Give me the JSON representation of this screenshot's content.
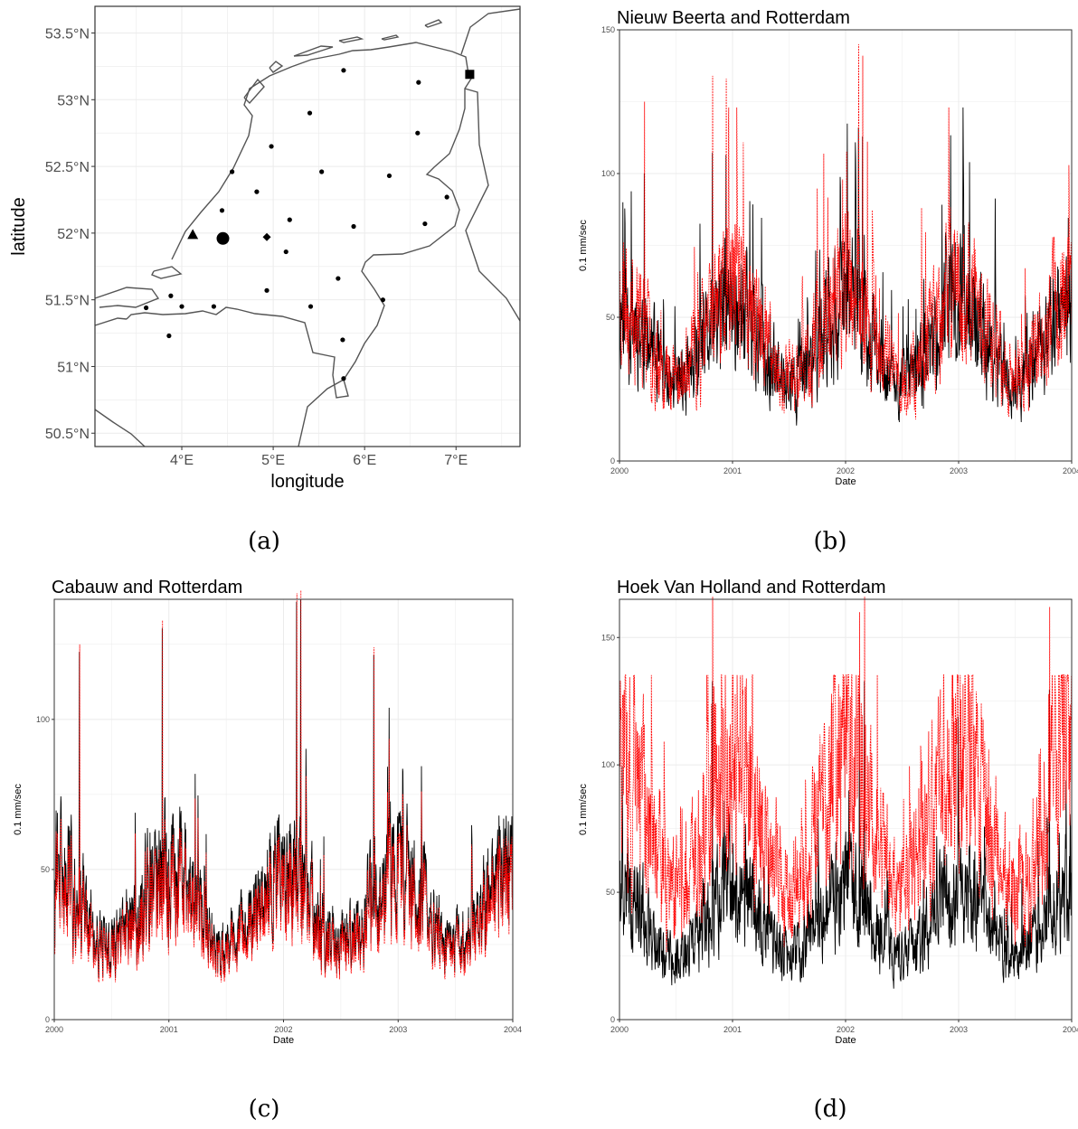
{
  "chart_data": [
    {
      "panel": "(a)",
      "type": "scatter",
      "title": "",
      "xlabel": "longitude",
      "ylabel": "latitude",
      "xlim": [
        3.05,
        7.7
      ],
      "ylim": [
        50.4,
        53.7
      ],
      "x_ticks": [
        4,
        5,
        6,
        7
      ],
      "x_tick_labels": [
        "4°E",
        "5°E",
        "6°E",
        "7°E"
      ],
      "y_ticks": [
        50.5,
        51,
        51.5,
        52,
        52.5,
        53,
        53.5
      ],
      "y_tick_labels": [
        "50.5°N",
        "51°N",
        "51.5°N",
        "52°N",
        "52.5°N",
        "53°N",
        "53.5°N"
      ],
      "grid": true,
      "special_markers": [
        {
          "shape": "triangle",
          "lon": 4.12,
          "lat": 51.99
        },
        {
          "shape": "big-circle",
          "lon": 4.45,
          "lat": 51.96
        },
        {
          "shape": "diamond",
          "lon": 4.93,
          "lat": 51.97
        },
        {
          "shape": "square",
          "lon": 7.15,
          "lat": 53.19
        }
      ],
      "stations": [
        [
          5.77,
          53.22
        ],
        [
          6.59,
          53.13
        ],
        [
          5.4,
          52.9
        ],
        [
          6.58,
          52.75
        ],
        [
          4.98,
          52.65
        ],
        [
          4.55,
          52.46
        ],
        [
          5.53,
          52.46
        ],
        [
          6.27,
          52.43
        ],
        [
          4.82,
          52.31
        ],
        [
          6.9,
          52.27
        ],
        [
          4.44,
          52.17
        ],
        [
          5.18,
          52.1
        ],
        [
          5.88,
          52.05
        ],
        [
          6.66,
          52.07
        ],
        [
          5.14,
          51.86
        ],
        [
          5.71,
          51.66
        ],
        [
          4.93,
          51.57
        ],
        [
          3.88,
          51.53
        ],
        [
          6.2,
          51.5
        ],
        [
          3.61,
          51.44
        ],
        [
          4.0,
          51.45
        ],
        [
          4.35,
          51.45
        ],
        [
          5.41,
          51.45
        ],
        [
          5.76,
          51.2
        ],
        [
          3.86,
          51.23
        ],
        [
          5.77,
          50.91
        ]
      ]
    },
    {
      "panel": "(b)",
      "type": "line",
      "title": "Nieuw Beerta and Rotterdam",
      "xlabel": "Date",
      "ylabel": "0.1 mm/sec",
      "xlim": [
        "2000-01-01",
        "2004-01-01"
      ],
      "ylim": [
        0,
        150
      ],
      "x_ticks": [
        "2000",
        "2001",
        "2002",
        "2003",
        "2004"
      ],
      "y_ticks": [
        0,
        50,
        100,
        150
      ],
      "grid": true,
      "series": [
        {
          "color": "#000000",
          "dash": "solid",
          "base": 40,
          "amp": 1.0,
          "seed": 11
        },
        {
          "color": "#ff0000",
          "dash": "dotted",
          "base": 42,
          "amp": 1.05,
          "seed": 23
        }
      ],
      "peaks": [
        [
          "2002-02-12",
          145
        ],
        [
          "2002-02-25",
          141
        ],
        [
          "2000-03-20",
          125
        ],
        [
          "2000-10-27",
          134
        ],
        [
          "2000-12-10",
          133
        ]
      ]
    },
    {
      "panel": "(c)",
      "type": "line",
      "title": "Cabauw and Rotterdam",
      "xlabel": "Date",
      "ylabel": "0.1 mm/sec",
      "xlim": [
        "2000-01-01",
        "2004-01-01"
      ],
      "ylim": [
        0,
        140
      ],
      "x_ticks": [
        "2000",
        "2001",
        "2002",
        "2003",
        "2004"
      ],
      "y_ticks": [
        0,
        50,
        100
      ],
      "grid": true,
      "series": [
        {
          "color": "#000000",
          "dash": "solid",
          "base": 38,
          "amp": 1.0,
          "seed": 31
        },
        {
          "color": "#ff0000",
          "dash": "dotted",
          "base": 36,
          "amp": 0.95,
          "seed": 31
        }
      ],
      "peaks": [
        [
          "2002-02-12",
          142
        ],
        [
          "2002-02-25",
          143
        ],
        [
          "2000-03-20",
          125
        ],
        [
          "2000-12-10",
          133
        ],
        [
          "2002-10-15",
          124
        ]
      ]
    },
    {
      "panel": "(d)",
      "type": "line",
      "title": "Hoek Van Holland and Rotterdam",
      "xlabel": "Date",
      "ylabel": "0.1 mm/sec",
      "xlim": [
        "2000-01-01",
        "2004-01-01"
      ],
      "ylim": [
        0,
        165
      ],
      "x_ticks": [
        "2000",
        "2001",
        "2002",
        "2003",
        "2004"
      ],
      "y_ticks": [
        0,
        50,
        100,
        150
      ],
      "grid": true,
      "series": [
        {
          "color": "#000000",
          "dash": "solid",
          "base": 38,
          "amp": 1.0,
          "seed": 41
        },
        {
          "color": "#ff0000",
          "dash": "dotted",
          "base": 62,
          "amp": 1.25,
          "seed": 57
        }
      ],
      "peaks": [
        [
          "2000-10-27",
          166
        ],
        [
          "2002-03-01",
          166
        ],
        [
          "2003-10-20",
          162
        ],
        [
          "2002-02-15",
          160
        ]
      ]
    }
  ],
  "captions": [
    "(a)",
    "(b)",
    "(c)",
    "(d)"
  ]
}
